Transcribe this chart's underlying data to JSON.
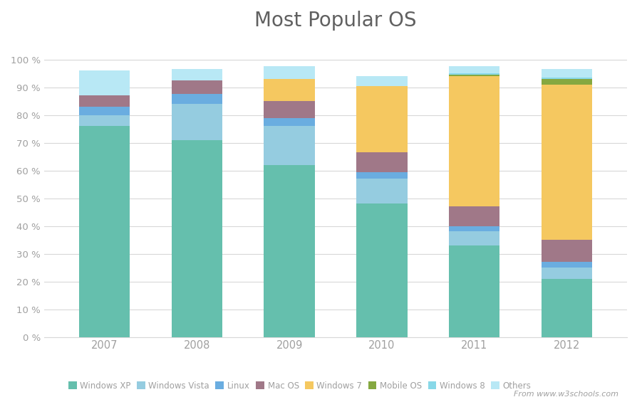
{
  "title": "Most Popular OS",
  "years": [
    "2007",
    "2008",
    "2009",
    "2010",
    "2011",
    "2012"
  ],
  "series": {
    "Windows XP": [
      76.0,
      71.0,
      62.0,
      48.0,
      33.0,
      21.0
    ],
    "Windows Vista": [
      4.0,
      13.0,
      14.0,
      9.0,
      5.0,
      4.0
    ],
    "Linux": [
      3.0,
      3.5,
      3.0,
      2.5,
      2.0,
      2.0
    ],
    "Mac OS": [
      4.0,
      5.0,
      6.0,
      7.0,
      7.0,
      8.0
    ],
    "Windows 7": [
      0.0,
      0.0,
      8.0,
      24.0,
      47.0,
      56.0
    ],
    "Mobile OS": [
      0.0,
      0.0,
      0.0,
      0.0,
      0.5,
      2.0
    ],
    "Windows 8": [
      0.0,
      0.0,
      0.0,
      0.0,
      0.5,
      0.5
    ],
    "Others": [
      9.0,
      4.0,
      4.5,
      3.5,
      2.5,
      3.0
    ]
  },
  "colors": {
    "Windows XP": "#65bfad",
    "Windows Vista": "#95cce0",
    "Linux": "#6aade0",
    "Mac OS": "#a07888",
    "Windows 7": "#f5c860",
    "Mobile OS": "#85a840",
    "Windows 8": "#88d8e8",
    "Others": "#b8e8f5"
  },
  "background_color": "#ffffff",
  "grid_color": "#d8d8d8",
  "text_color": "#a0a0a0",
  "title_color": "#606060",
  "annotation": "From www.w3schools.com"
}
